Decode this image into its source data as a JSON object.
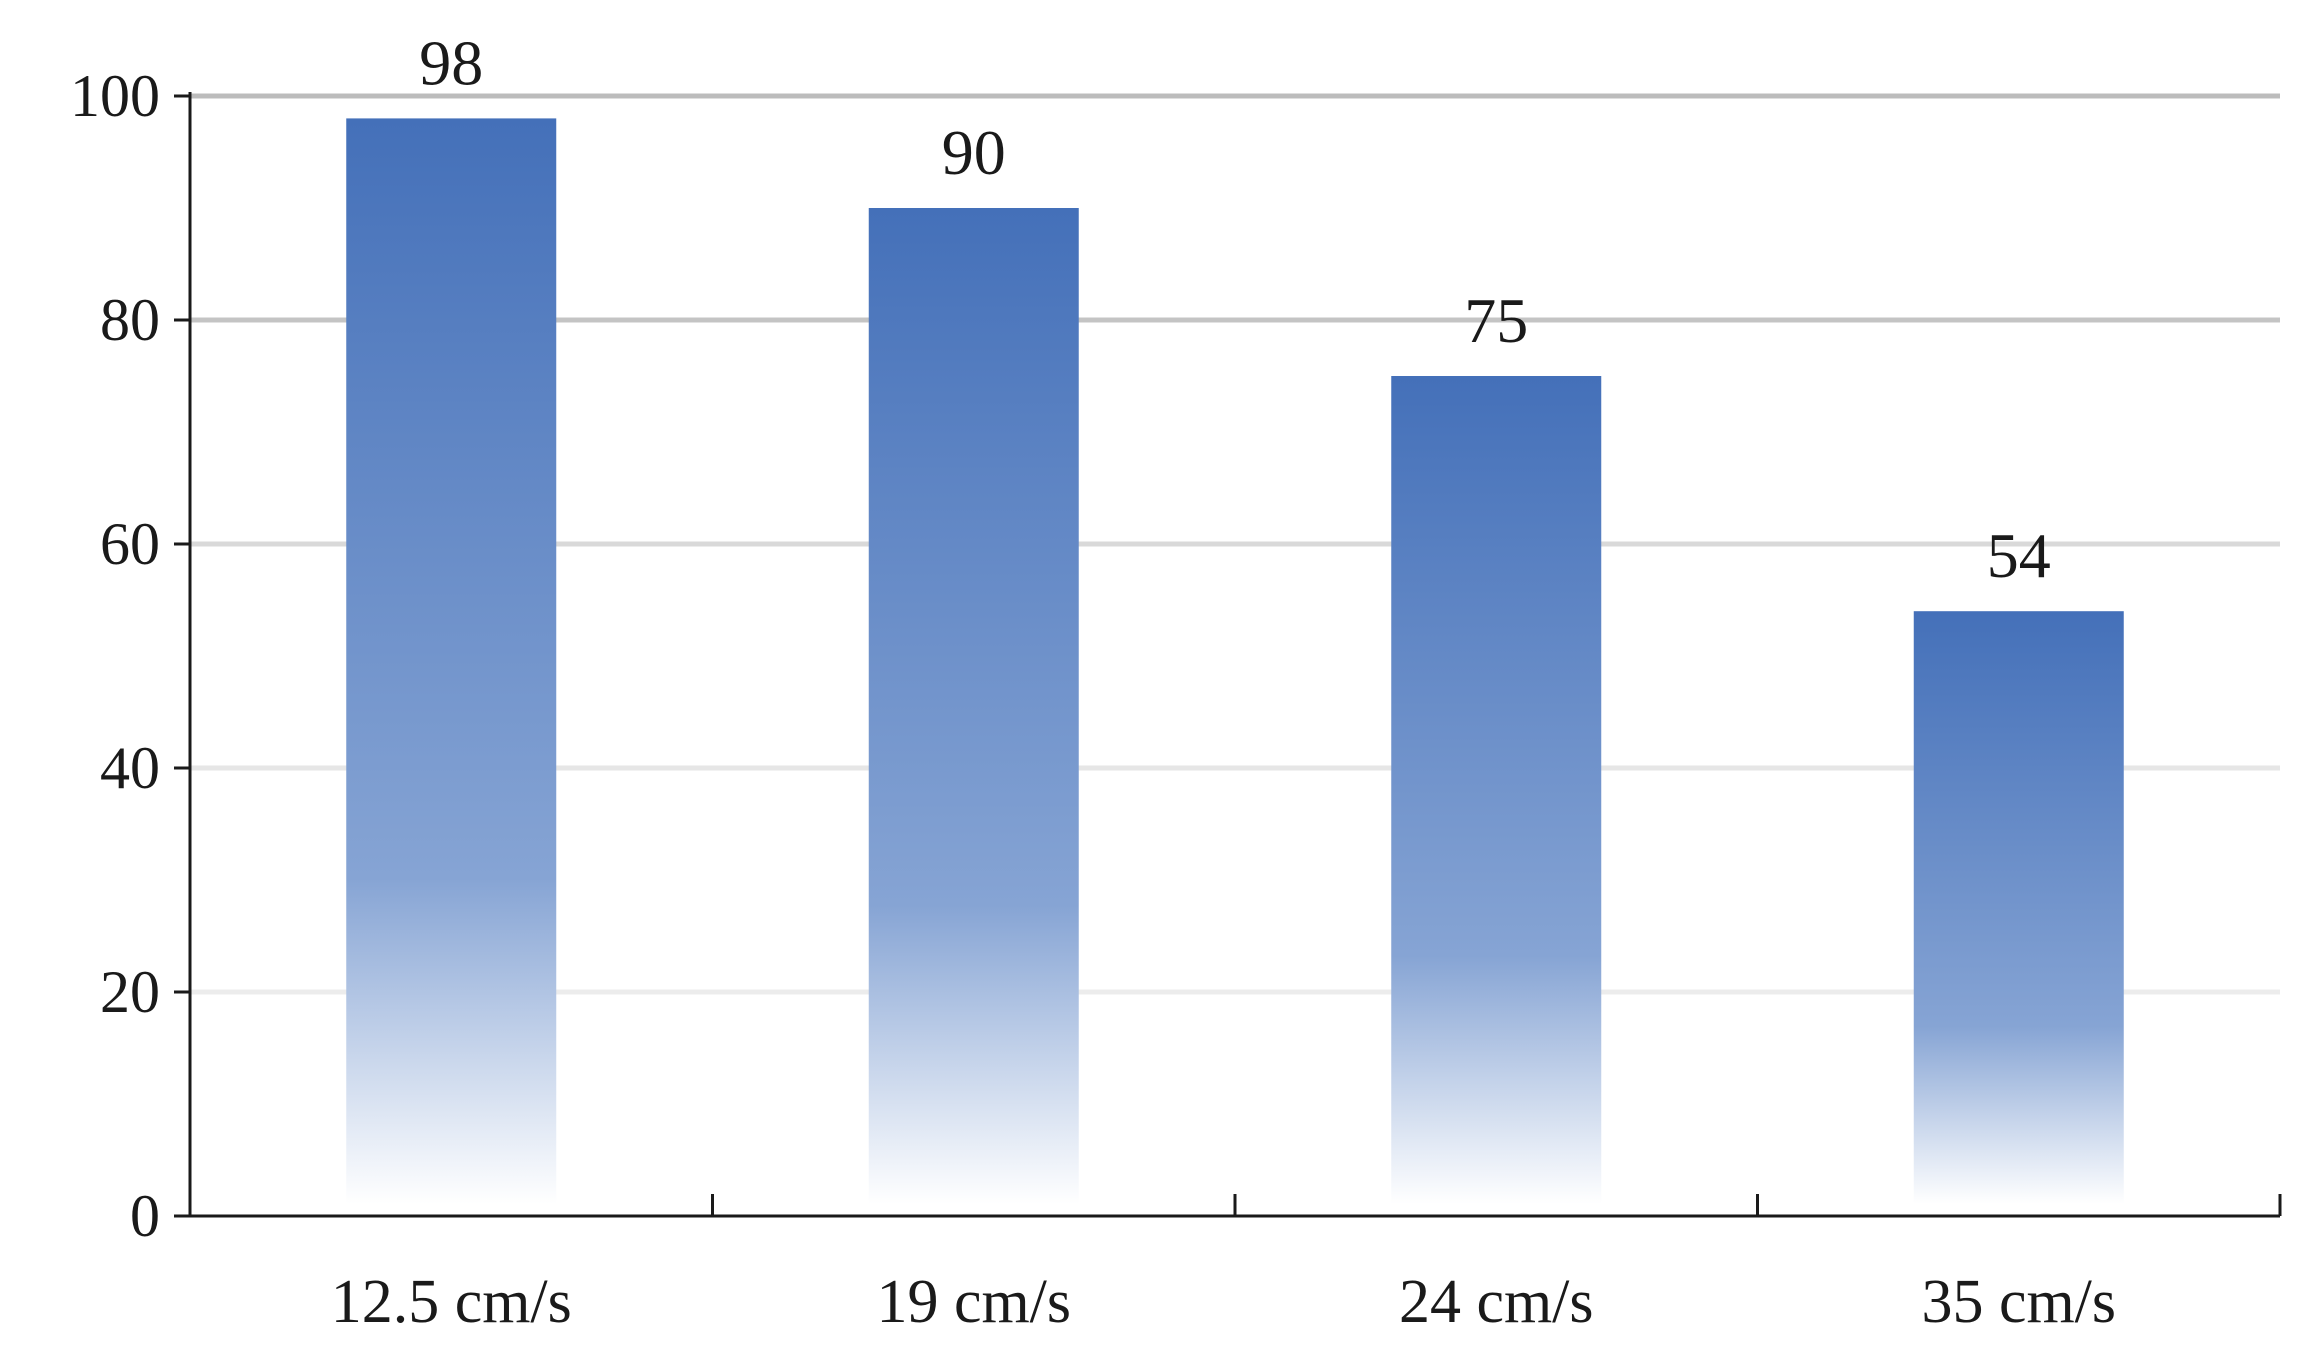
{
  "chart_data": {
    "type": "bar",
    "title": "",
    "xlabel": "",
    "ylabel": "",
    "categories": [
      "12.5 cm/s",
      "19 cm/s",
      "24 cm/s",
      "35 cm/s"
    ],
    "values": [
      98,
      90,
      75,
      54
    ],
    "ylim": [
      0,
      100
    ],
    "yticks": [
      0,
      20,
      40,
      60,
      80,
      100
    ],
    "grid": true,
    "data_labels": [
      "98",
      "90",
      "75",
      "54"
    ],
    "colors": {
      "bar_top": "#4470b9",
      "bar_bottom": "#ffffff",
      "axis": "#1a1a1a"
    }
  }
}
